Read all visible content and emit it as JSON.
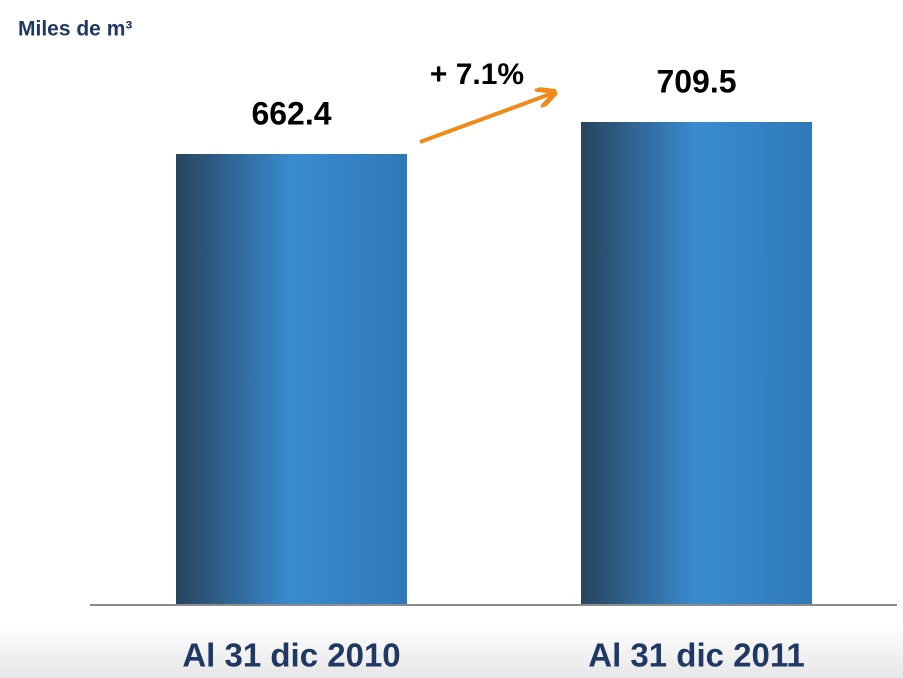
{
  "chart_data": {
    "type": "bar",
    "title": "Miles de m³",
    "categories": [
      "Al 31 dic 2010",
      "Al 31 dic 2011"
    ],
    "values": [
      662.4,
      709.5
    ],
    "color": "#3a8fd6",
    "annotation": "+ 7.1%"
  }
}
